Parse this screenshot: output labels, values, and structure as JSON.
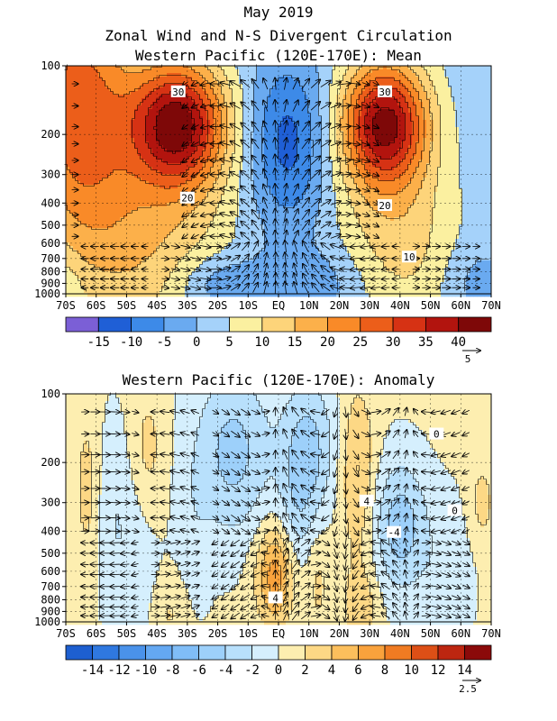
{
  "title": {
    "line1": "May 2019",
    "line2": "Zonal Wind and N-S Divergent Circulation",
    "line3": "Western Pacific (120E-170E): Mean"
  },
  "chart_data": [
    {
      "type": "heatmap",
      "title": "Western Pacific (120E-170E): Mean",
      "x_ticks": [
        "70S",
        "60S",
        "50S",
        "40S",
        "30S",
        "20S",
        "10S",
        "EQ",
        "10N",
        "20N",
        "30N",
        "40N",
        "50N",
        "60N",
        "70N"
      ],
      "y_ticks": [
        "100",
        "200",
        "300",
        "400",
        "500",
        "600",
        "700",
        "800",
        "900",
        "1000"
      ],
      "x_range": [
        "70S",
        "70N"
      ],
      "y_range_hPa": [
        1000,
        100
      ],
      "y_scale": "log-pressure",
      "grid": true,
      "color_levels": [
        -15,
        -10,
        -5,
        0,
        5,
        10,
        15,
        20,
        25,
        30,
        35,
        40
      ],
      "colorbar_labels": [
        "-15",
        "-10",
        "-5",
        "0",
        "5",
        "10",
        "15",
        "20",
        "25",
        "30",
        "35",
        "40"
      ],
      "colors": [
        "#7b5fd6",
        "#1f5fd6",
        "#3d8ae8",
        "#6aaaf0",
        "#a5d2fa",
        "#fbf0a0",
        "#fdd47a",
        "#fcb04a",
        "#f98a28",
        "#ec5e1a",
        "#d63214",
        "#b2140e",
        "#7e0808"
      ],
      "contour_labels": [
        {
          "text": "30",
          "lat": -33,
          "p": 130
        },
        {
          "text": "20",
          "lat": -30,
          "p": 380
        },
        {
          "text": "30",
          "lat": 35,
          "p": 130
        },
        {
          "text": "20",
          "lat": 35,
          "p": 410
        },
        {
          "text": "10",
          "lat": 43,
          "p": 690
        }
      ],
      "maxima": [
        {
          "lat": -33,
          "p": 180,
          "value": 38
        },
        {
          "lat": 35,
          "p": 180,
          "value": 37
        },
        {
          "lat": -67,
          "p": 140,
          "value": 31
        }
      ],
      "minima": [
        {
          "lat": 3,
          "p": 200,
          "value": -8
        },
        {
          "lat": -20,
          "p": 870,
          "value": -6
        }
      ],
      "vector_scale_label": "5"
    },
    {
      "type": "heatmap",
      "title": "Western Pacific (120E-170E): Anomaly",
      "x_ticks": [
        "70S",
        "60S",
        "50S",
        "40S",
        "30S",
        "20S",
        "10S",
        "EQ",
        "10N",
        "20N",
        "30N",
        "40N",
        "50N",
        "60N",
        "70N"
      ],
      "y_ticks": [
        "100",
        "200",
        "300",
        "400",
        "500",
        "600",
        "700",
        "800",
        "900",
        "1000"
      ],
      "x_range": [
        "70S",
        "70N"
      ],
      "y_range_hPa": [
        1000,
        100
      ],
      "y_scale": "log-pressure",
      "grid": true,
      "color_levels": [
        -14,
        -12,
        -10,
        -8,
        -6,
        -4,
        -2,
        0,
        2,
        4,
        6,
        8,
        10,
        12,
        14
      ],
      "colorbar_labels": [
        "-14",
        "-12",
        "-10",
        "-8",
        "-6",
        "-4",
        "-2",
        "0",
        "2",
        "4",
        "6",
        "8",
        "10",
        "12",
        "14"
      ],
      "colors": [
        "#1d5fd0",
        "#2f78e0",
        "#4a92ea",
        "#64a8f2",
        "#80bdf7",
        "#9dd0fa",
        "#b8e0fc",
        "#d5effd",
        "#fdeeb0",
        "#fdd885",
        "#fcbf5c",
        "#f9a23c",
        "#f07b22",
        "#dd4f16",
        "#bd2610",
        "#8b0a0a"
      ],
      "contour_labels": [
        {
          "text": "0",
          "lat": 52,
          "p": 150
        },
        {
          "text": "4",
          "lat": 29,
          "p": 295
        },
        {
          "text": "-4",
          "lat": 38,
          "p": 405
        },
        {
          "text": "0",
          "lat": 58,
          "p": 325
        },
        {
          "text": "4",
          "lat": -1,
          "p": 785
        }
      ],
      "maxima": [
        {
          "lat": -1,
          "p": 600,
          "value": 7
        },
        {
          "lat": -43,
          "p": 180,
          "value": 3
        },
        {
          "lat": -63,
          "p": 240,
          "value": 3
        },
        {
          "lat": 26,
          "p": 200,
          "value": 4
        },
        {
          "lat": 67,
          "p": 300,
          "value": 3
        },
        {
          "lat": 27,
          "p": 870,
          "value": 4
        },
        {
          "lat": -36,
          "p": 920,
          "value": 2
        },
        {
          "lat": 13,
          "p": 670,
          "value": 2
        }
      ],
      "minima": [
        {
          "lat": -15,
          "p": 180,
          "value": -6
        },
        {
          "lat": 10,
          "p": 175,
          "value": -5
        },
        {
          "lat": 40,
          "p": 380,
          "value": -6
        },
        {
          "lat": -48,
          "p": 520,
          "value": -2
        },
        {
          "lat": 6,
          "p": 350,
          "value": -3
        }
      ],
      "vector_scale_label": "2.5"
    }
  ]
}
